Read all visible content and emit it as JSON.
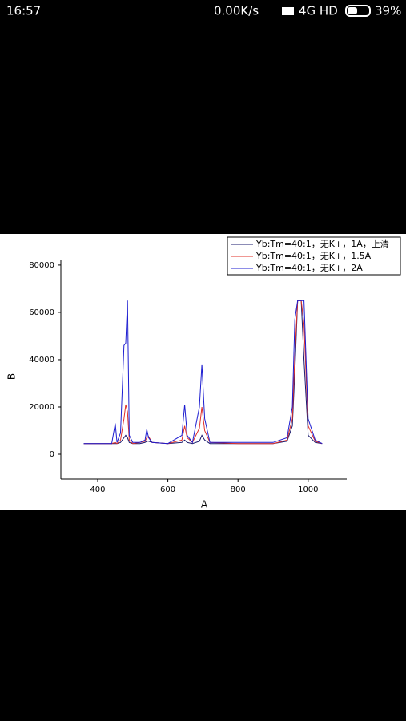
{
  "status_bar": {
    "time": "16:57",
    "speed": "0.00K/s",
    "network": "4G HD",
    "battery": "39%"
  },
  "chart_data": {
    "type": "line",
    "x_label": "A",
    "y_label": "B",
    "x": [
      360,
      440,
      450,
      455,
      465,
      475,
      480,
      485,
      490,
      500,
      520,
      535,
      540,
      545,
      555,
      600,
      640,
      648,
      655,
      670,
      690,
      697,
      705,
      720,
      800,
      900,
      940,
      955,
      962,
      970,
      980,
      988,
      1000,
      1020,
      1040
    ],
    "series": [
      {
        "name": "Yb:Tm=40:1，无K+，1A，上清",
        "color": "#1a1a6e",
        "values": [
          4500,
          4500,
          4500,
          4500,
          5000,
          7000,
          8000,
          7000,
          5000,
          4500,
          4500,
          5000,
          5500,
          5500,
          5000,
          4500,
          5000,
          6000,
          5000,
          4500,
          5500,
          8000,
          6000,
          4500,
          4500,
          4500,
          5500,
          12000,
          35000,
          65000,
          65000,
          40000,
          8000,
          5000,
          4500
        ]
      },
      {
        "name": "Yb:Tm=40:1，无K+，1.5A",
        "color": "#e0302a",
        "values": [
          4500,
          4500,
          5000,
          4500,
          6000,
          15000,
          21000,
          18000,
          6000,
          4500,
          5000,
          5500,
          7000,
          7500,
          5000,
          4500,
          6000,
          12000,
          7000,
          5000,
          11000,
          20000,
          10000,
          5000,
          4500,
          4500,
          6000,
          15000,
          42000,
          65000,
          65000,
          55000,
          12000,
          5500,
          4500
        ]
      },
      {
        "name": "Yb:Tm=40:1，无K+，2A",
        "color": "#1c1cd0",
        "values": [
          4500,
          4500,
          13000,
          5000,
          9000,
          46000,
          47000,
          65000,
          8000,
          5000,
          5000,
          6000,
          10500,
          7000,
          5000,
          4500,
          8000,
          21000,
          8000,
          5000,
          20000,
          38000,
          15000,
          5000,
          5000,
          5000,
          7000,
          20000,
          57000,
          65000,
          65000,
          65000,
          15000,
          6000,
          4500
        ]
      }
    ],
    "xlim": [
      295,
      1110
    ],
    "xticks": [
      400,
      600,
      800,
      1000
    ],
    "ylim": [
      -10500,
      82000
    ],
    "yticks": [
      0,
      20000,
      40000,
      60000,
      80000
    ],
    "legend": "upper right"
  }
}
